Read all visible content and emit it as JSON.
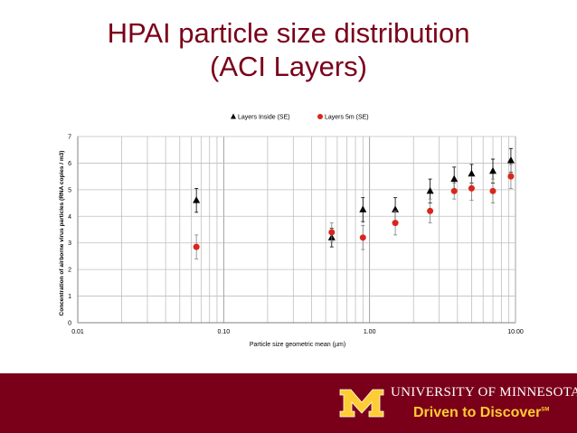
{
  "title": {
    "line1": "HPAI particle size distribution",
    "line2": "(ACI Layers)"
  },
  "footer": {
    "university": "UNIVERSITY OF MINNESOTA",
    "tagline": "Driven to Discover",
    "trademark": "SM",
    "logo": "block-M-logo",
    "background_color": "#7a0019",
    "tagline_color": "#ffcc33"
  },
  "chart_data": {
    "type": "scatter",
    "xlabel": "Particle size geometric mean (µm)",
    "ylabel": "Concentration of airborne virus particles (RNA copies / m3)",
    "xscale": "log",
    "xlim": [
      0.01,
      10
    ],
    "ylim": [
      0,
      7
    ],
    "xticks": [
      "0.01",
      "0.10",
      "1.00",
      "10.00"
    ],
    "yticks": [
      "0",
      "1",
      "2",
      "3",
      "4",
      "5",
      "6",
      "7"
    ],
    "grid": true,
    "legend_position": "top",
    "series": [
      {
        "name": "Layers Inside (SE)",
        "marker": "triangle",
        "color": "#000000",
        "points": [
          {
            "x": 0.065,
            "y": 4.6,
            "se": 0.45
          },
          {
            "x": 0.55,
            "y": 3.2,
            "se": 0.35
          },
          {
            "x": 0.9,
            "y": 4.25,
            "se": 0.45
          },
          {
            "x": 1.5,
            "y": 4.25,
            "se": 0.45
          },
          {
            "x": 2.6,
            "y": 4.95,
            "se": 0.45
          },
          {
            "x": 3.8,
            "y": 5.4,
            "se": 0.45
          },
          {
            "x": 5.0,
            "y": 5.6,
            "se": 0.35
          },
          {
            "x": 7.0,
            "y": 5.7,
            "se": 0.45
          },
          {
            "x": 9.3,
            "y": 6.1,
            "se": 0.45
          }
        ]
      },
      {
        "name": "Layers 5m (SE)",
        "marker": "circle",
        "color": "#d9261c",
        "points": [
          {
            "x": 0.065,
            "y": 2.85,
            "se": 0.45
          },
          {
            "x": 0.55,
            "y": 3.4,
            "se": 0.35
          },
          {
            "x": 0.9,
            "y": 3.2,
            "se": 0.45
          },
          {
            "x": 1.5,
            "y": 3.75,
            "se": 0.45
          },
          {
            "x": 2.6,
            "y": 4.2,
            "se": 0.45
          },
          {
            "x": 3.8,
            "y": 4.95,
            "se": 0.3
          },
          {
            "x": 5.0,
            "y": 5.05,
            "se": 0.45
          },
          {
            "x": 7.0,
            "y": 4.95,
            "se": 0.45
          },
          {
            "x": 9.3,
            "y": 5.5,
            "se": 0.45
          }
        ]
      }
    ]
  }
}
